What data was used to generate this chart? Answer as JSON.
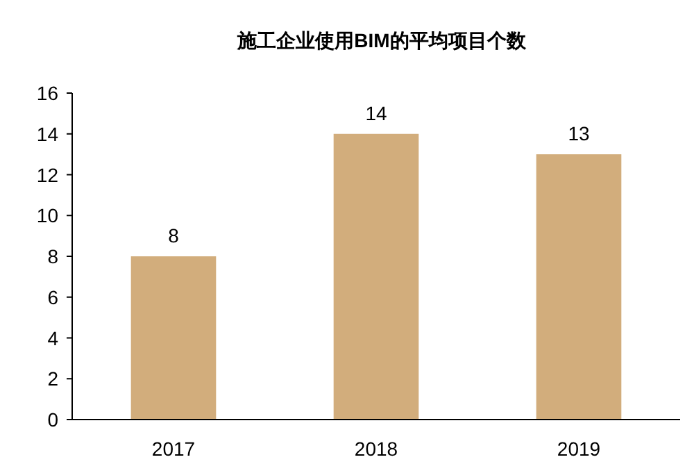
{
  "chart_data": {
    "type": "bar",
    "title": "施工企业使用BIM的平均项目个数",
    "categories": [
      "2017",
      "2018",
      "2019"
    ],
    "values": [
      8,
      14,
      13
    ],
    "color": "#d2ad7c",
    "ylim": [
      0,
      16
    ],
    "yticks": [
      0,
      2,
      4,
      6,
      8,
      10,
      12,
      14,
      16
    ],
    "grid": false,
    "data_labels": true
  }
}
